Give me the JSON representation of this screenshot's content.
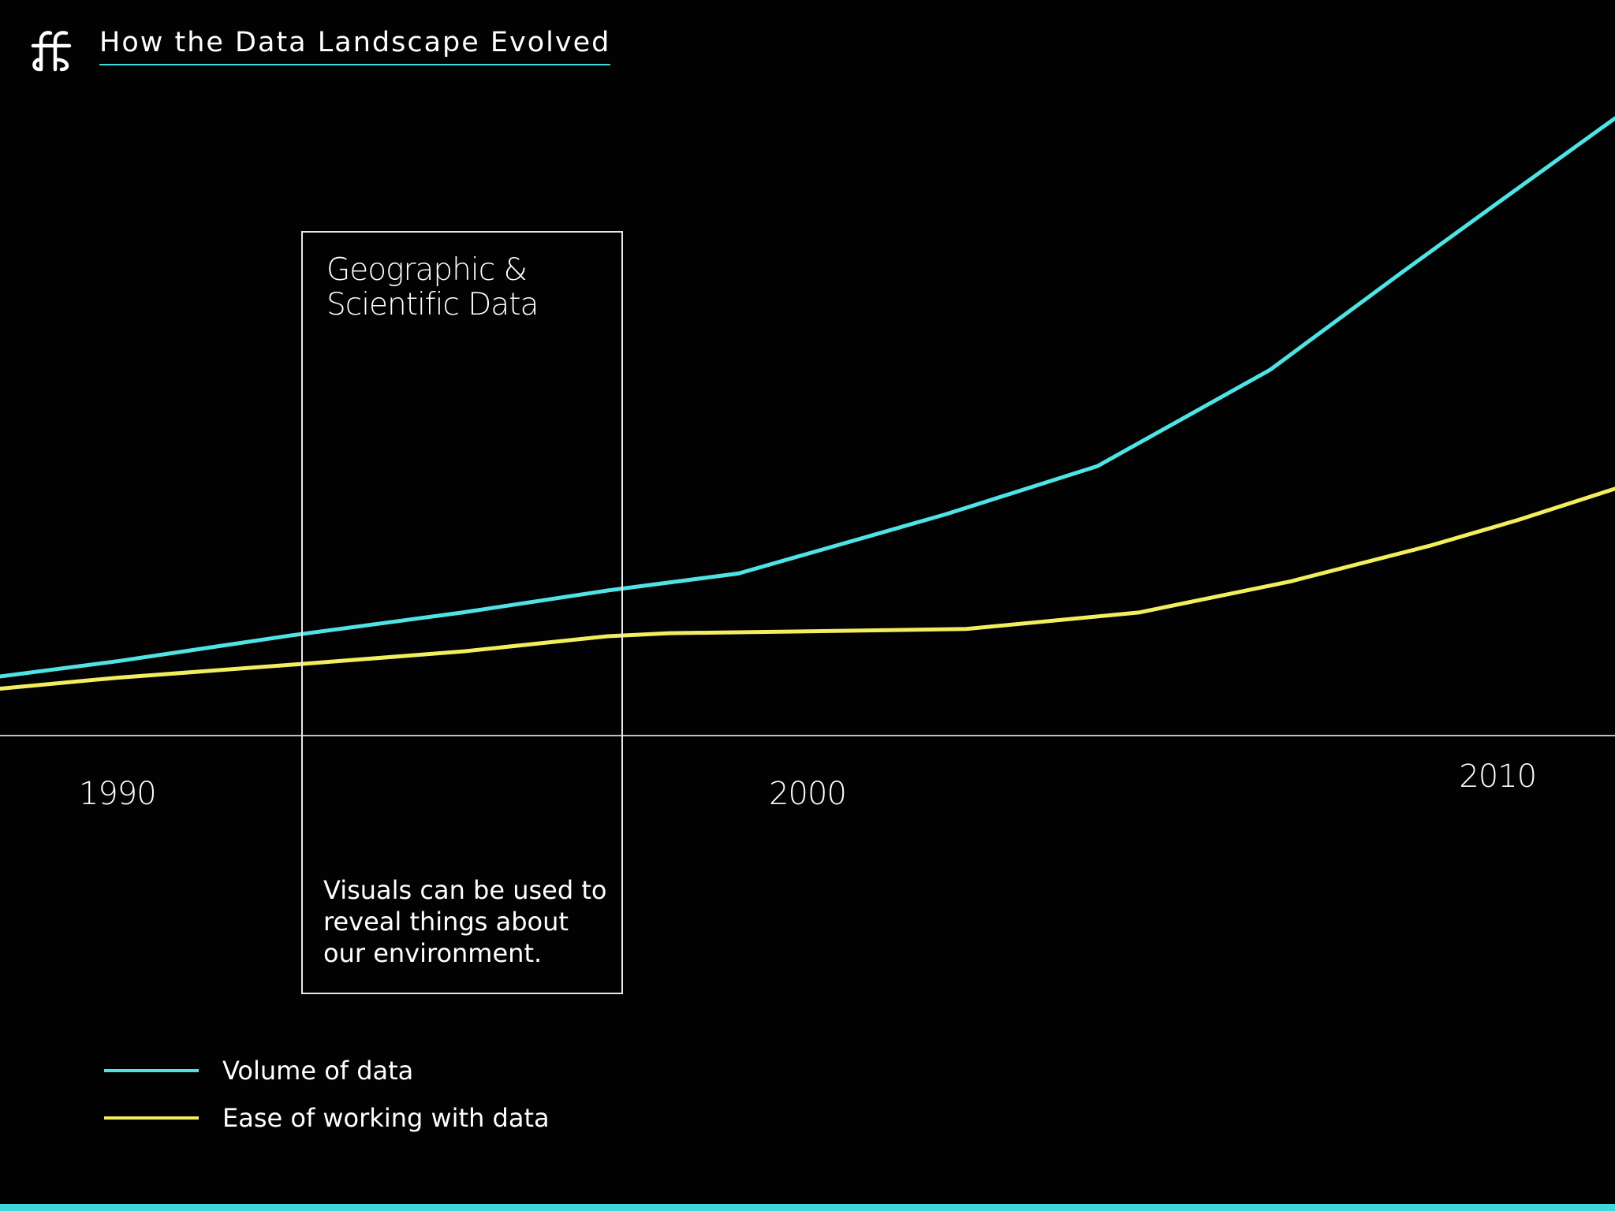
{
  "header": {
    "logo_icon": "ff-ligature-logo-icon",
    "title": "How the Data Landscape Evolved"
  },
  "annotation": {
    "title_line1": "Geographic &",
    "title_line2": "Scientific Data",
    "body": "Visuals can be used to reveal things about our environment.",
    "x_start": 1992.5,
    "x_end": 1997.1
  },
  "colors": {
    "background": "#020203",
    "accent": "#3fd9d9",
    "volume_line": "#4fe3e3",
    "ease_line": "#f2ef5e",
    "axis": "#bfbfbf"
  },
  "chart_data": {
    "type": "line",
    "title": "How the Data Landscape Evolved",
    "xlabel": "",
    "ylabel": "",
    "x_ticks": [
      {
        "value": 1990,
        "label": "1990"
      },
      {
        "value": 2000,
        "label": "2000"
      },
      {
        "value": 2010,
        "label": "2010"
      }
    ],
    "xlim": [
      1988.3,
      2011.7
    ],
    "ylim": [
      0,
      100
    ],
    "grid": false,
    "legend_position": "bottom-left",
    "series": [
      {
        "name": "Volume of data",
        "color": "#4fe3e3",
        "points": [
          [
            1988.3,
            9.7
          ],
          [
            1990,
            12.2
          ],
          [
            1992.5,
            16.4
          ],
          [
            1995,
            20.2
          ],
          [
            1997.1,
            23.8
          ],
          [
            1999,
            26.6
          ],
          [
            2002,
            36.3
          ],
          [
            2004.2,
            44.2
          ],
          [
            2006.7,
            60.0
          ],
          [
            2008.6,
            75.9
          ],
          [
            2010,
            87.4
          ],
          [
            2011.7,
            101.3
          ]
        ]
      },
      {
        "name": "Ease of working with data",
        "color": "#f2ef5e",
        "points": [
          [
            1988.3,
            7.7
          ],
          [
            1990,
            9.5
          ],
          [
            1992.5,
            11.6
          ],
          [
            1995,
            13.8
          ],
          [
            1997.1,
            16.3
          ],
          [
            1998,
            16.8
          ],
          [
            2000,
            17.1
          ],
          [
            2002.3,
            17.5
          ],
          [
            2004.8,
            20.2
          ],
          [
            2007,
            25.3
          ],
          [
            2009,
            31.1
          ],
          [
            2010.3,
            35.4
          ],
          [
            2011.7,
            40.5
          ]
        ]
      }
    ]
  },
  "legend": {
    "items": [
      {
        "label": "Volume of data",
        "color": "#4fe3e3"
      },
      {
        "label": "Ease of working with data",
        "color": "#f2ef5e"
      }
    ]
  }
}
